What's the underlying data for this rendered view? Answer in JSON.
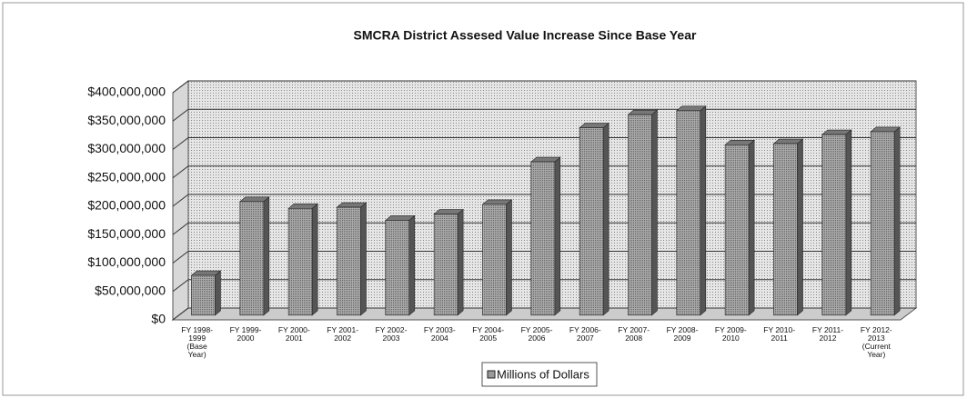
{
  "chart_data": {
    "type": "bar3d",
    "title": "SMCRA District Assesed Value Increase Since Base Year",
    "categories": [
      "FY 1998-1999 (Base Year)",
      "FY 1999-2000",
      "FY 2000-2001",
      "FY 2001-2002",
      "FY 2002-2003",
      "FY 2003-2004",
      "FY 2004-2005",
      "FY 2005-2006",
      "FY 2006-2007",
      "FY 2007-2008",
      "FY 2008-2009",
      "FY 2009-2010",
      "FY 2010-2011",
      "FY 2011-2012",
      "FY 2012-2013 (Current Year)"
    ],
    "series": [
      {
        "name": "Millions of Dollars",
        "color": "#9a9a9a",
        "values": [
          70000000,
          200000000,
          188000000,
          190000000,
          167000000,
          178000000,
          195000000,
          270000000,
          330000000,
          353000000,
          360000000,
          300000000,
          302000000,
          318000000,
          323000000
        ]
      }
    ],
    "ylim": [
      0,
      400000000
    ],
    "yticks": [
      {
        "value": 0,
        "label": "$0"
      },
      {
        "value": 50000000,
        "label": "$50,000,000"
      },
      {
        "value": 100000000,
        "label": "$100,000,000"
      },
      {
        "value": 150000000,
        "label": "$150,000,000"
      },
      {
        "value": 200000000,
        "label": "$200,000,000"
      },
      {
        "value": 250000000,
        "label": "$250,000,000"
      },
      {
        "value": 300000000,
        "label": "$300,000,000"
      },
      {
        "value": 350000000,
        "label": "$350,000,000"
      },
      {
        "value": 400000000,
        "label": "$400,000,000"
      }
    ],
    "grid": true,
    "legend": "bottom"
  }
}
